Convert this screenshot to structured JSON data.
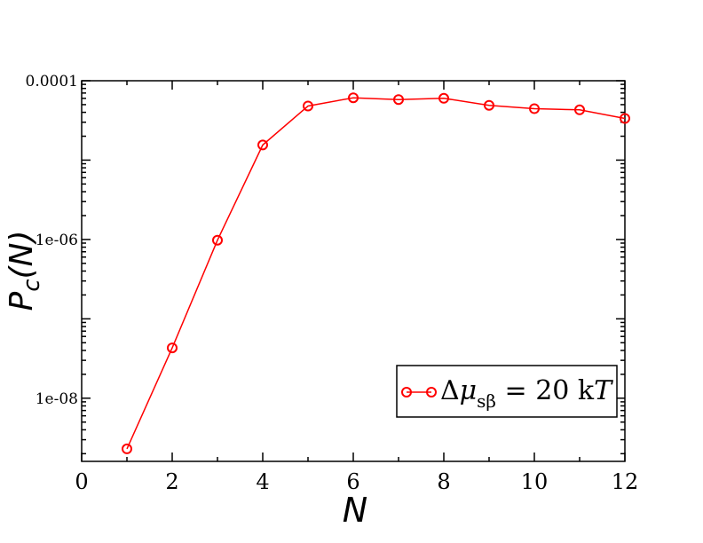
{
  "chart_data": {
    "type": "line",
    "x": [
      1,
      2,
      3,
      4,
      5,
      6,
      7,
      8,
      9,
      10,
      11,
      12
    ],
    "series": [
      {
        "name": "Δμsβ = 20 kT",
        "values": [
          2.3e-09,
          4.3e-08,
          9.8e-07,
          1.55e-05,
          4.8e-05,
          6.1e-05,
          5.8e-05,
          6e-05,
          4.9e-05,
          4.45e-05,
          4.3e-05,
          3.35e-05
        ],
        "color": "#ff0000",
        "marker": "open-circle"
      }
    ],
    "xlim": [
      0,
      12
    ],
    "ylim": [
      1.6e-09,
      0.0001
    ],
    "yscale": "log",
    "x_ticks": [
      "0",
      "2",
      "4",
      "6",
      "8",
      "10",
      "12"
    ],
    "y_ticks": [
      "1e-08",
      "1e-06",
      "0.0001"
    ],
    "xlabel": "N",
    "ylabel": {
      "main": "P",
      "sub": "c",
      "rest": "(N)"
    },
    "legend": {
      "placement": "lower-right",
      "label": {
        "delta": "Δ",
        "mu": "μ",
        "sub": "sβ",
        "rest": " = 20 k",
        "T": "T"
      }
    },
    "grid": false
  }
}
